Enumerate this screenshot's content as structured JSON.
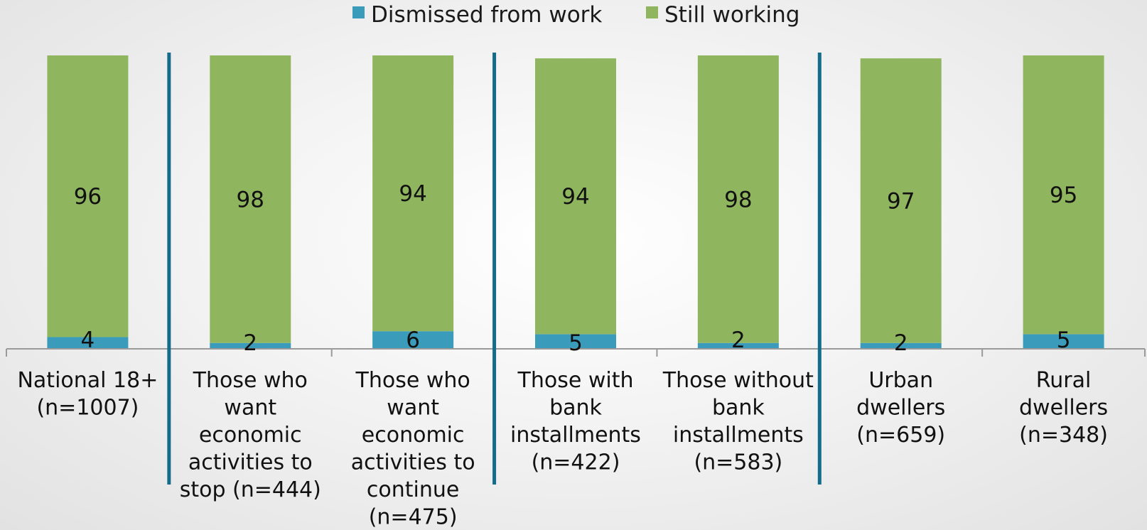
{
  "chart_data": {
    "type": "bar",
    "stacked": true,
    "title": "",
    "xlabel": "",
    "ylabel": "",
    "ylim": [
      0,
      100
    ],
    "grid": false,
    "legend_position": "top",
    "categories": [
      [
        "National 18+",
        "(n=1007)"
      ],
      [
        "Those who",
        "want",
        "economic",
        "activities to",
        "stop (n=444)"
      ],
      [
        "Those who",
        "want",
        "economic",
        "activities to",
        "continue",
        "(n=475)"
      ],
      [
        "Those with",
        "bank",
        "installments",
        "(n=422)"
      ],
      [
        "Those without",
        "bank",
        "installments",
        "(n=583)"
      ],
      [
        "Urban",
        "dwellers",
        "(n=659)"
      ],
      [
        "Rural",
        "dwellers",
        "(n=348)"
      ]
    ],
    "series": [
      {
        "name": "Dismissed from work",
        "color": "#3a9bba",
        "values": [
          4,
          2,
          6,
          5,
          2,
          2,
          5
        ]
      },
      {
        "name": "Still working",
        "color": "#8fb65f",
        "values": [
          96,
          98,
          94,
          94,
          98,
          97,
          95
        ]
      }
    ],
    "group_separators_after": [
      0,
      2,
      4
    ],
    "separator_color": "#156b8a",
    "axis_color": "#9a9a9a"
  }
}
